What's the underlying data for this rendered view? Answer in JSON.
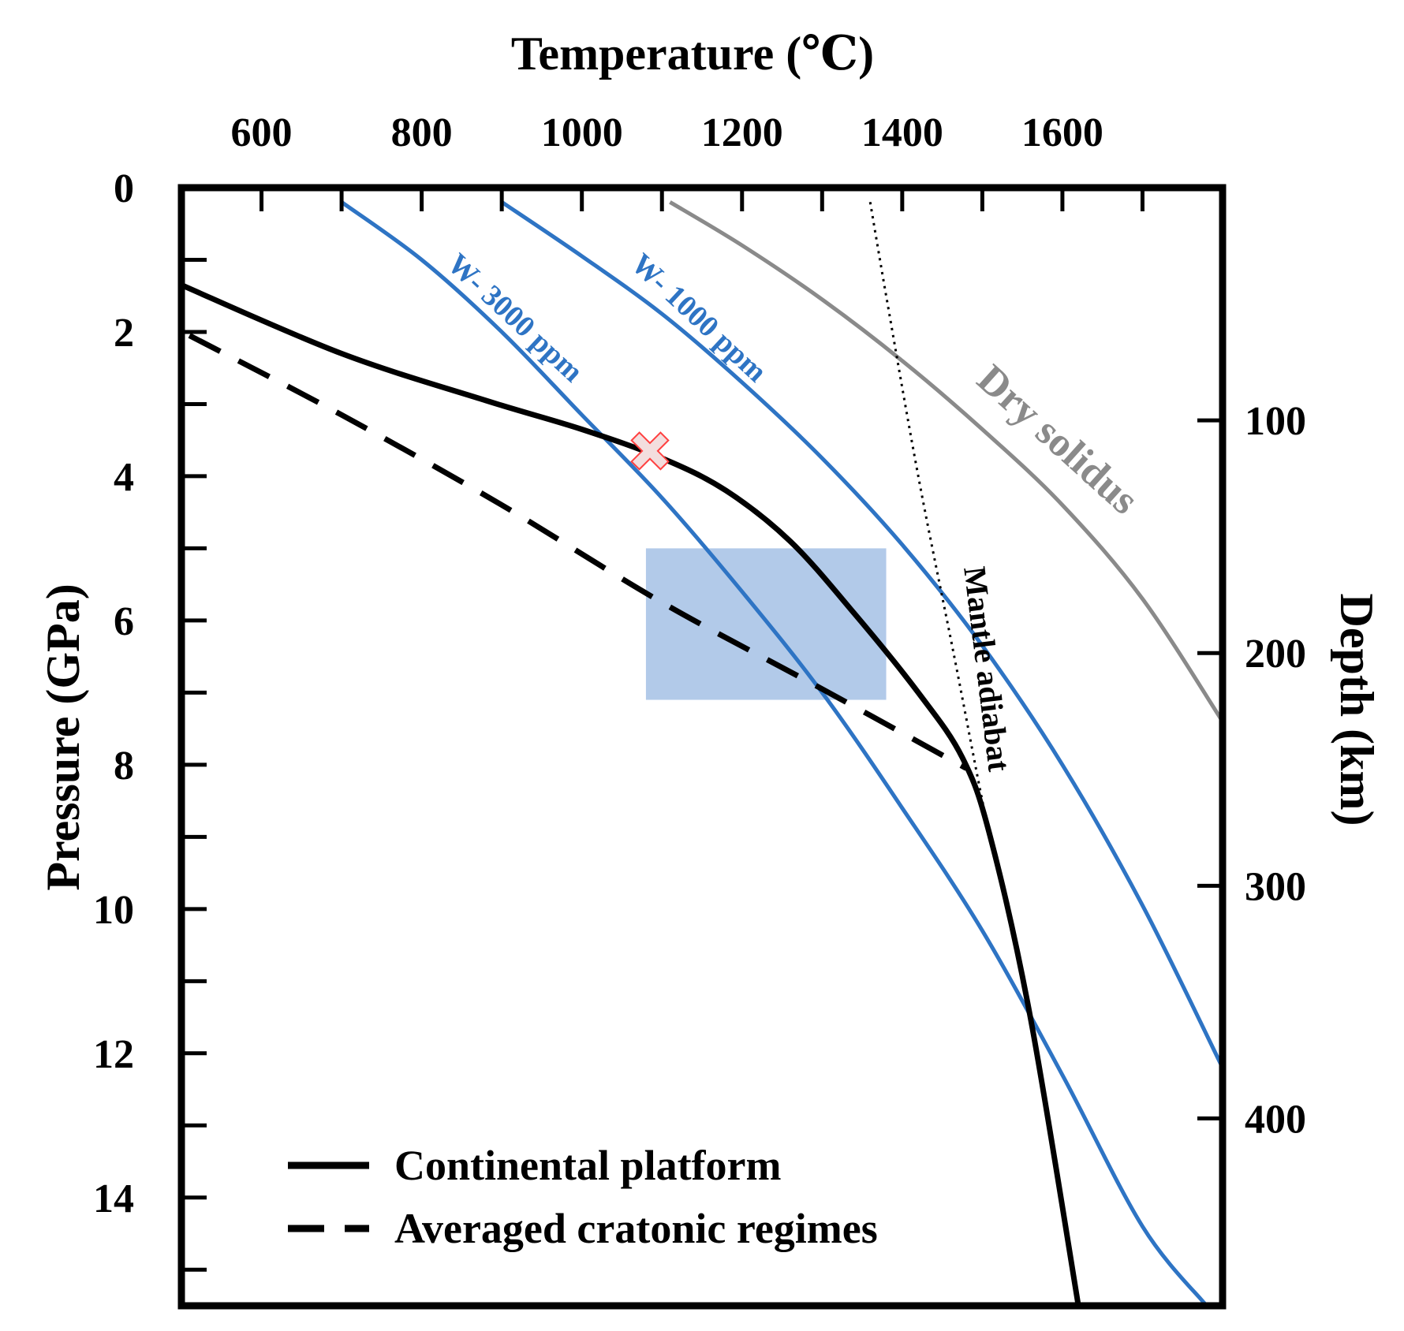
{
  "chart_data": {
    "type": "line",
    "title": "",
    "xlabel": "Temperature (℃)",
    "ylabel": "Pressure (GPa)",
    "y2label": "Depth (km)",
    "xlim": [
      500,
      1800
    ],
    "ylim": [
      0,
      15.5
    ],
    "xticks": [
      600,
      800,
      1000,
      1200,
      1400,
      1600
    ],
    "yticks": [
      0,
      2,
      4,
      6,
      8,
      10,
      12,
      14
    ],
    "y2ticks": [
      100,
      200,
      300,
      400
    ],
    "y2_per_gpa_km": 31.0,
    "series": [
      {
        "name": "Continental platform",
        "style": "solid",
        "color": "#000000",
        "points": [
          [
            500,
            1.35
          ],
          [
            700,
            2.3
          ],
          [
            880,
            2.95
          ],
          [
            1000,
            3.35
          ],
          [
            1100,
            3.75
          ],
          [
            1180,
            4.2
          ],
          [
            1260,
            4.9
          ],
          [
            1340,
            5.9
          ],
          [
            1420,
            7.0
          ],
          [
            1475,
            7.9
          ],
          [
            1510,
            9.0
          ],
          [
            1560,
            11.5
          ],
          [
            1620,
            15.5
          ]
        ]
      },
      {
        "name": "Averaged cratonic regimes",
        "style": "dashed",
        "color": "#000000",
        "points": [
          [
            510,
            2.05
          ],
          [
            700,
            3.15
          ],
          [
            900,
            4.4
          ],
          [
            1100,
            5.75
          ],
          [
            1300,
            6.95
          ],
          [
            1480,
            8.05
          ]
        ]
      },
      {
        "name": "W-3000 ppm",
        "style": "solid",
        "color": "#2e74c4",
        "points": [
          [
            700,
            0.2
          ],
          [
            800,
            1.0
          ],
          [
            900,
            2.0
          ],
          [
            1000,
            3.15
          ],
          [
            1100,
            4.3
          ],
          [
            1200,
            5.6
          ],
          [
            1300,
            7.0
          ],
          [
            1400,
            8.6
          ],
          [
            1500,
            10.3
          ],
          [
            1600,
            12.3
          ],
          [
            1700,
            14.4
          ],
          [
            1780,
            15.5
          ]
        ]
      },
      {
        "name": "W-1000 ppm",
        "style": "solid",
        "color": "#2e74c4",
        "points": [
          [
            900,
            0.2
          ],
          [
            1000,
            0.95
          ],
          [
            1100,
            1.75
          ],
          [
            1200,
            2.7
          ],
          [
            1300,
            3.75
          ],
          [
            1400,
            4.95
          ],
          [
            1500,
            6.35
          ],
          [
            1600,
            8.0
          ],
          [
            1700,
            9.95
          ],
          [
            1800,
            12.2
          ]
        ]
      },
      {
        "name": "Dry solidus",
        "style": "solid",
        "color": "#8a8a8a",
        "points": [
          [
            1110,
            0.2
          ],
          [
            1200,
            0.8
          ],
          [
            1300,
            1.55
          ],
          [
            1400,
            2.4
          ],
          [
            1500,
            3.35
          ],
          [
            1600,
            4.4
          ],
          [
            1700,
            5.7
          ],
          [
            1800,
            7.4
          ]
        ]
      },
      {
        "name": "Mantle adiabat",
        "style": "dotted",
        "color": "#000000",
        "points": [
          [
            1360,
            0.2
          ],
          [
            1380,
            1.5
          ],
          [
            1420,
            4.0
          ],
          [
            1465,
            6.5
          ],
          [
            1500,
            8.5
          ],
          [
            1520,
            9.5
          ]
        ]
      }
    ],
    "region": {
      "name": "shaded box",
      "x": [
        1080,
        1380
      ],
      "y": [
        5.0,
        7.1
      ],
      "color": "#aec7e8"
    },
    "marker": {
      "name": "cross",
      "x": 1085,
      "y": 3.65,
      "color": "#ff4040"
    },
    "curve_labels": [
      {
        "text": "W- 3000 ppm",
        "series": "W-3000 ppm"
      },
      {
        "text": "W- 1000 ppm",
        "series": "W-1000 ppm"
      },
      {
        "text": "Dry solidus",
        "series": "Dry solidus"
      },
      {
        "text": "Mantle adiabat",
        "series": "Mantle adiabat"
      }
    ],
    "legend": {
      "position": "bottom-left",
      "entries": [
        {
          "label": "Continental platform",
          "style": "solid"
        },
        {
          "label": "Averaged cratonic regimes",
          "style": "dashed"
        }
      ]
    }
  }
}
